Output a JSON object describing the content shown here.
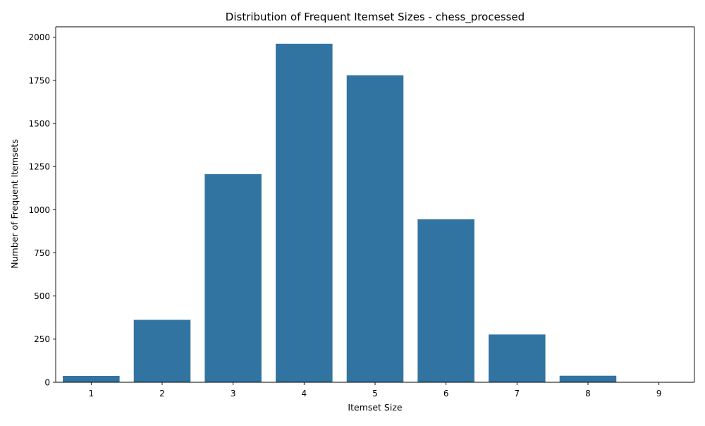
{
  "chart_data": {
    "type": "bar",
    "title": "Distribution of Frequent Itemset Sizes - chess_processed",
    "xlabel": "Itemset Size",
    "ylabel": "Number of Frequent Itemsets",
    "categories": [
      "1",
      "2",
      "3",
      "4",
      "5",
      "6",
      "7",
      "8",
      "9"
    ],
    "values": [
      37,
      362,
      1207,
      1963,
      1780,
      945,
      277,
      38,
      2
    ],
    "ylim": [
      0,
      2061
    ],
    "yticks": [
      0,
      250,
      500,
      750,
      1000,
      1250,
      1500,
      1750,
      2000
    ],
    "ytick_labels": [
      "0",
      "250",
      "500",
      "750",
      "1000",
      "1250",
      "1500",
      "1750",
      "2000"
    ],
    "bar_color": "#3274a1",
    "grid": false,
    "legend": "none"
  }
}
